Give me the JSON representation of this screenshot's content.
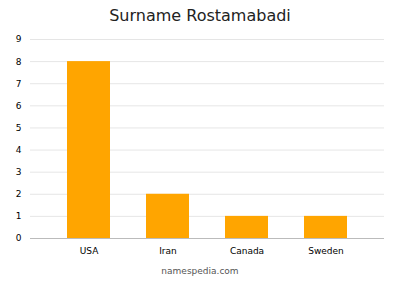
{
  "chart_data": {
    "type": "bar",
    "title": "Surname Rostamabadi",
    "caption": "namespedia.com",
    "categories": [
      "USA",
      "Iran",
      "Canada",
      "Sweden"
    ],
    "values": [
      8,
      2,
      1,
      1
    ],
    "color": "#FFA500",
    "ylim": [
      0,
      9
    ],
    "yticks": [
      0,
      1,
      2,
      3,
      4,
      5,
      6,
      7,
      8,
      9
    ],
    "grid": true
  }
}
